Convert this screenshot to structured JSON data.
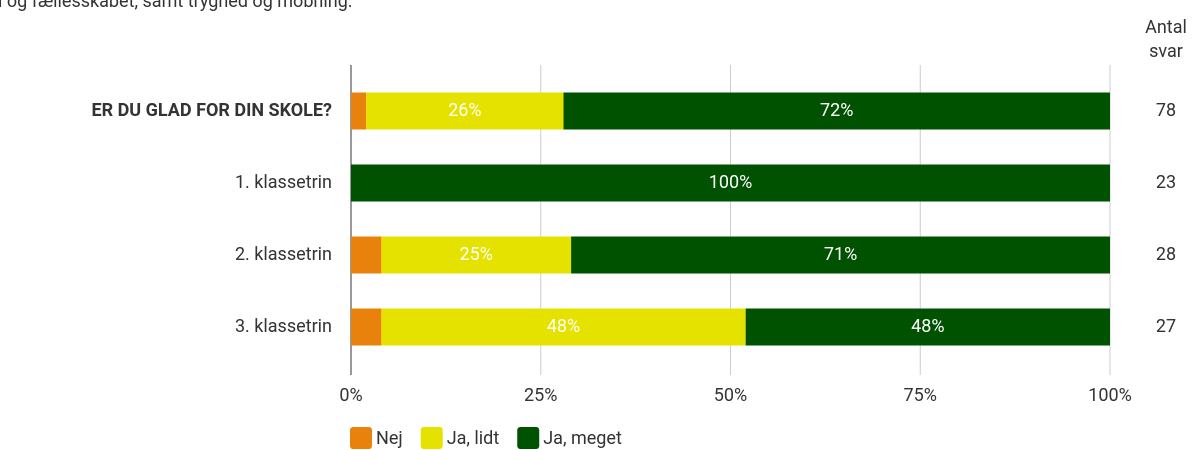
{
  "chart_data": {
    "type": "stacked_barh",
    "subtitle": "i og fællesskabet, samt tryghed og mobning.",
    "categories": [
      "ER DU GLAD FOR DIN SKOLE?",
      "1. klassetrin",
      "2. klassetrin",
      "3. klassetrin"
    ],
    "series": [
      {
        "name": "Nej",
        "color": "#e8820c",
        "values": [
          2,
          0,
          4,
          4
        ],
        "value_labels": [
          null,
          null,
          null,
          null
        ]
      },
      {
        "name": "Ja, lidt",
        "color": "#e6e200",
        "values": [
          26,
          0,
          25,
          48
        ],
        "value_labels": [
          "26%",
          null,
          "25%",
          "48%"
        ]
      },
      {
        "name": "Ja, meget",
        "color": "#005100",
        "values": [
          72,
          100,
          71,
          48
        ],
        "value_labels": [
          "72%",
          "100%",
          "71%",
          "48%"
        ]
      }
    ],
    "xlim": [
      0,
      100
    ],
    "xticks": [
      {
        "value": 0,
        "label": "0%"
      },
      {
        "value": 25,
        "label": "25%"
      },
      {
        "value": 50,
        "label": "50%"
      },
      {
        "value": 75,
        "label": "75%"
      },
      {
        "value": 100,
        "label": "100%"
      }
    ],
    "grid": true,
    "counts_header": [
      "Antal",
      "svar"
    ],
    "counts": [
      78,
      23,
      28,
      27
    ],
    "legend": "bottom"
  }
}
